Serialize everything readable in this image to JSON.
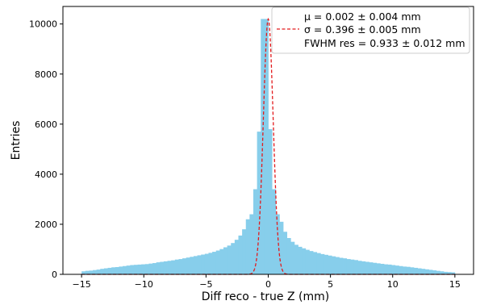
{
  "chart_data": {
    "type": "bar",
    "xlabel": "Diff reco - true Z (mm)",
    "ylabel": "Entries",
    "xlim": [
      -16.5,
      16.5
    ],
    "ylim": [
      0,
      10700
    ],
    "xticks": [
      -15,
      -10,
      -5,
      0,
      5,
      10,
      15
    ],
    "yticks": [
      0,
      2000,
      4000,
      6000,
      8000,
      10000
    ],
    "grid": false,
    "legend_position": "top-right",
    "bin_edges": {
      "start": -15,
      "stop": 15,
      "width": 0.3
    },
    "series": [
      {
        "name": "",
        "kind": "histogram",
        "color": "#87CEEB",
        "values": [
          120,
          140,
          150,
          170,
          190,
          220,
          240,
          260,
          280,
          290,
          310,
          330,
          350,
          370,
          380,
          390,
          400,
          410,
          430,
          450,
          480,
          500,
          520,
          540,
          560,
          590,
          610,
          640,
          670,
          700,
          730,
          760,
          790,
          820,
          860,
          900,
          950,
          1010,
          1080,
          1150,
          1250,
          1380,
          1550,
          1800,
          2200,
          2400,
          3400,
          5700,
          10200,
          10200,
          5800,
          3400,
          2400,
          2100,
          1700,
          1450,
          1300,
          1180,
          1100,
          1040,
          980,
          930,
          890,
          850,
          810,
          780,
          750,
          720,
          690,
          660,
          640,
          610,
          590,
          570,
          540,
          520,
          500,
          480,
          460,
          440,
          420,
          400,
          390,
          370,
          350,
          330,
          310,
          300,
          280,
          260,
          240,
          220,
          200,
          180,
          160,
          140,
          120,
          100,
          90,
          80
        ]
      },
      {
        "name": "fit",
        "kind": "gaussian-line",
        "color": "#e31a1c",
        "mu": 0.002,
        "sigma": 0.396,
        "amplitude": 10200
      }
    ],
    "legend": {
      "line1": "μ = 0.002 ± 0.004 mm",
      "line2": "σ = 0.396 ± 0.005 mm",
      "line3": "FWHM res = 0.933 ± 0.012 mm"
    }
  }
}
